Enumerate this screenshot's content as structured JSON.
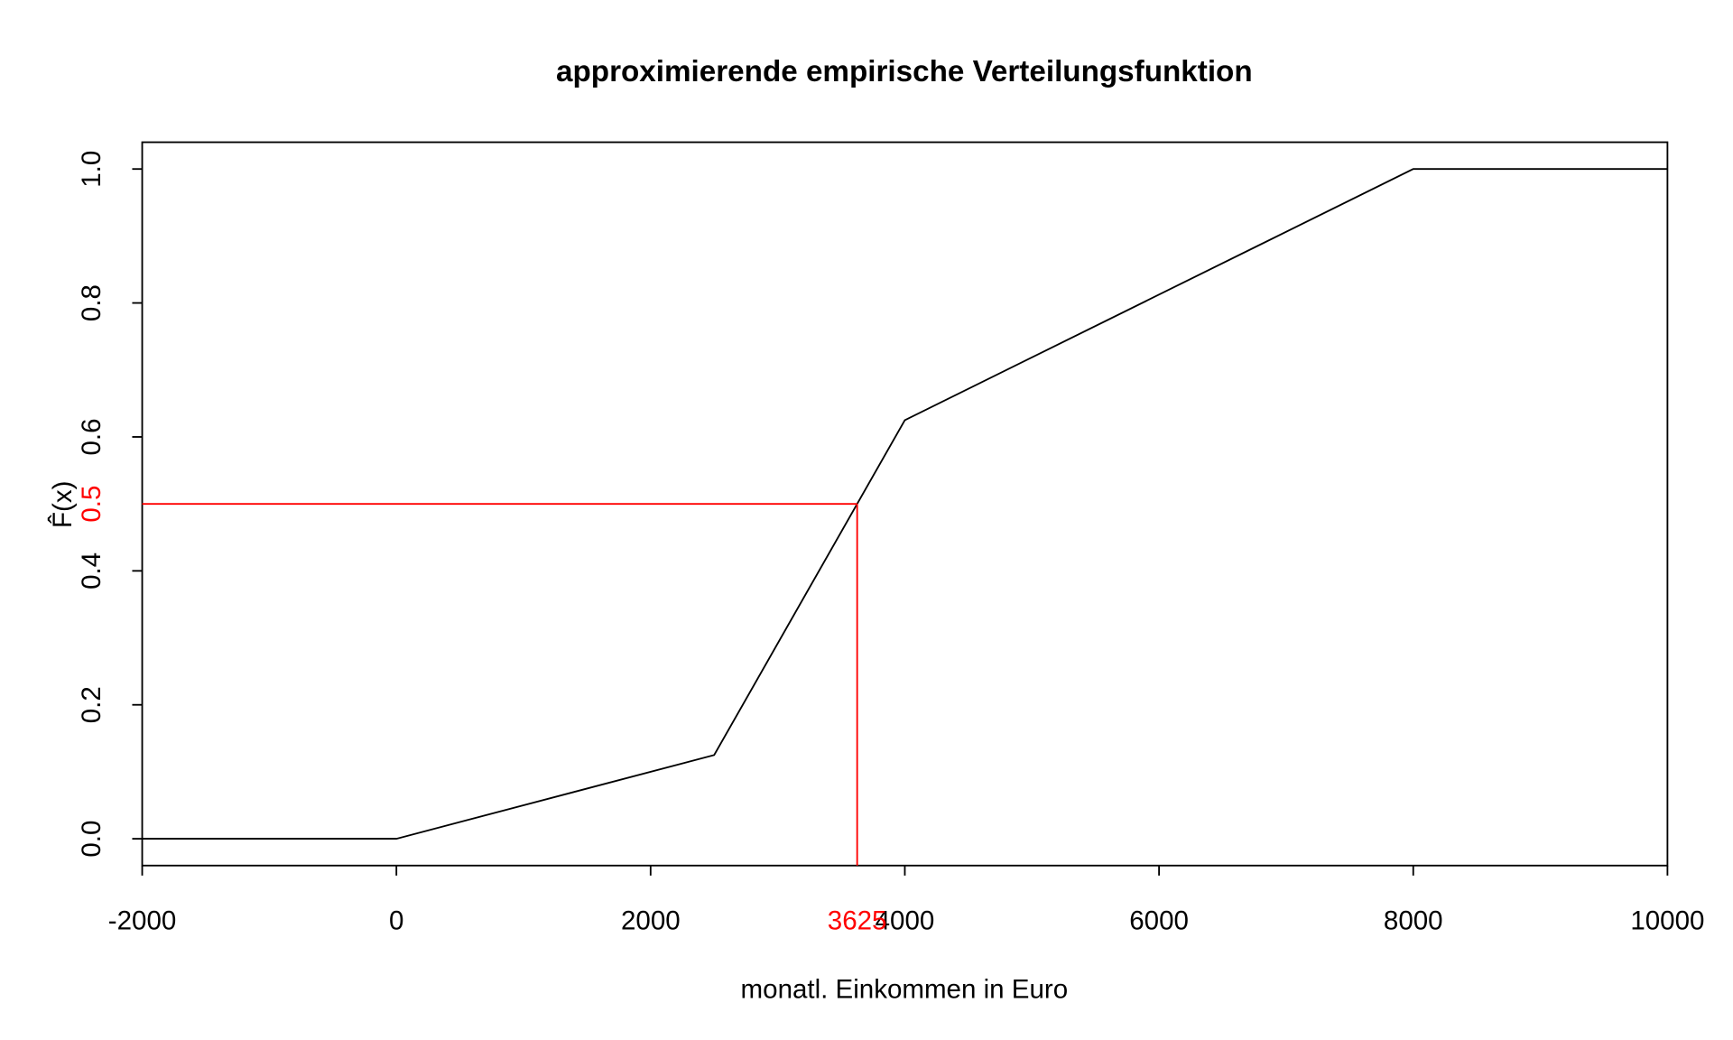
{
  "chart_data": {
    "type": "line",
    "title": "approximierende empirische Verteilungsfunktion",
    "x_label": "monatl. Einkommen in Euro",
    "y_label": "F̂(x)",
    "series": [
      {
        "color": "#000000",
        "x": [
          -2000,
          0,
          2500,
          4000,
          8000,
          10000
        ],
        "values": [
          0,
          0,
          0.125,
          0.625,
          1,
          1
        ]
      }
    ],
    "reference": {
      "x": 3625,
      "y": 0.5,
      "color": "#ff0000"
    },
    "xlim": [
      -2000,
      10000
    ],
    "xticks": [
      -2000,
      0,
      2000,
      4000,
      6000,
      8000,
      10000
    ],
    "ylim": [
      -0.04,
      1.04
    ],
    "yticks": [
      {
        "value": 0,
        "label": "0.0"
      },
      0.2,
      0.4,
      0.6,
      0.8,
      {
        "value": 1,
        "label": "1.0"
      }
    ],
    "grid": false
  }
}
